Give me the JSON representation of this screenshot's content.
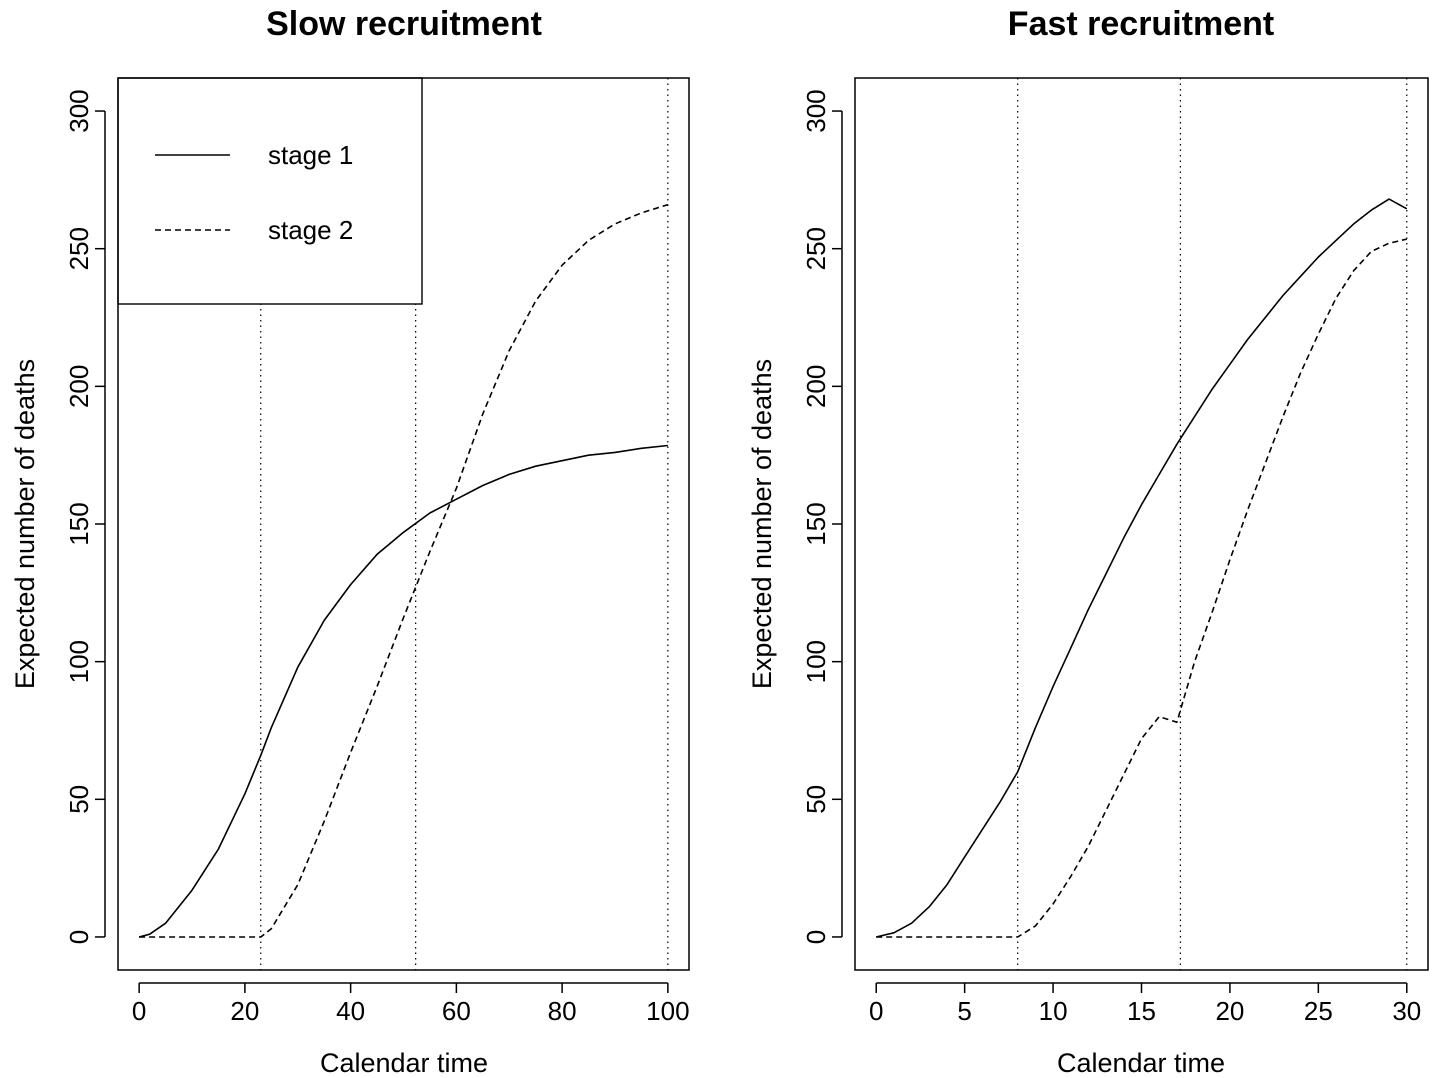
{
  "chart_data": [
    {
      "type": "line",
      "title": "Slow recruitment",
      "xlabel": "Calendar time",
      "ylabel": "Expected number of deaths",
      "xlim": [
        -4,
        104
      ],
      "ylim": [
        -12,
        312
      ],
      "xticks": [
        0,
        20,
        40,
        60,
        80,
        100
      ],
      "yticks": [
        0,
        50,
        100,
        150,
        200,
        250,
        300
      ],
      "vlines": [
        23,
        52.3,
        100
      ],
      "legend": {
        "placement": "top-left",
        "entries": [
          {
            "label": "stage 1",
            "linestyle": "solid"
          },
          {
            "label": "stage 2",
            "linestyle": "dashed"
          }
        ]
      },
      "x": [
        0,
        2,
        5,
        10,
        15,
        20,
        23,
        25,
        30,
        35,
        40,
        45,
        50,
        55,
        60,
        65,
        70,
        75,
        80,
        85,
        90,
        95,
        100
      ],
      "series": [
        {
          "name": "stage 1",
          "linestyle": "solid",
          "values": [
            0,
            1,
            5,
            17,
            32,
            52,
            66,
            76,
            98,
            115,
            128,
            139,
            147,
            154,
            159,
            164,
            168,
            171,
            173,
            175,
            176,
            177.5,
            178.5
          ]
        },
        {
          "name": "stage 2",
          "linestyle": "dashed",
          "values": [
            0,
            0,
            0,
            0,
            0,
            0,
            0,
            3,
            19,
            42,
            67,
            91,
            116,
            140,
            163,
            190,
            213,
            231,
            244,
            253,
            259,
            263,
            266
          ]
        }
      ]
    },
    {
      "type": "line",
      "title": "Fast recruitment",
      "xlabel": "Calendar time",
      "ylabel": "Expected number of deaths",
      "xlim": [
        -1.2,
        31.2
      ],
      "ylim": [
        -12,
        312
      ],
      "xticks": [
        0,
        5,
        10,
        15,
        20,
        25,
        30
      ],
      "yticks": [
        0,
        50,
        100,
        150,
        200,
        250,
        300
      ],
      "vlines": [
        8,
        17.2,
        30
      ],
      "x": [
        0,
        1,
        2,
        3,
        4,
        5,
        6,
        7,
        8,
        9,
        10,
        11,
        12,
        13,
        14,
        15,
        16,
        17,
        18,
        19,
        20,
        21,
        22,
        23,
        24,
        25,
        26,
        27,
        28,
        29,
        30
      ],
      "series": [
        {
          "name": "stage 1",
          "linestyle": "solid",
          "values": [
            0,
            1.5,
            5,
            11,
            19,
            29,
            39,
            49,
            60,
            76,
            91,
            105,
            119,
            132,
            145,
            157,
            168,
            179,
            189,
            199,
            208,
            217,
            225,
            233,
            240,
            247,
            253,
            259,
            264,
            268,
            264.5
          ]
        },
        {
          "name": "stage 2",
          "linestyle": "dashed",
          "values": [
            0,
            0,
            0,
            0,
            0,
            0,
            0,
            0,
            0,
            4,
            12,
            22,
            33,
            46,
            59,
            72,
            80,
            78,
            100,
            118,
            137,
            155,
            172,
            189,
            205,
            219,
            232,
            242,
            249,
            252,
            253.5
          ]
        }
      ]
    }
  ]
}
